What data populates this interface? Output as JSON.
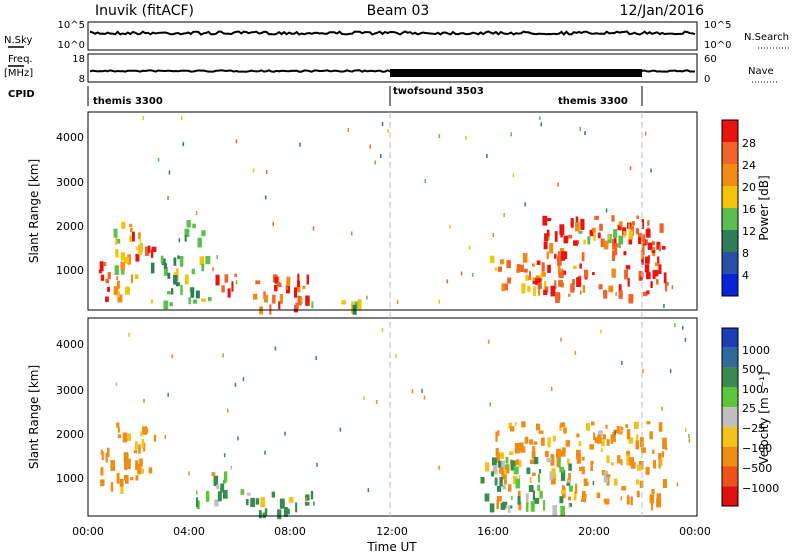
{
  "header": {
    "station": "Inuvik (fitACF)",
    "beam": "Beam 03",
    "date": "12/Jan/2016"
  },
  "strip": {
    "nsky_label": "N.Sky",
    "nsky_ticks": [
      "10^5",
      "10^0"
    ],
    "nsearch_label": "N.Search",
    "nsearch_ticks": [
      "10^5",
      "10^0"
    ],
    "freq_label": "Freq.",
    "freq_unit": "[MHz]",
    "freq_ticks": [
      "18",
      "8"
    ],
    "nave_label": "Nave",
    "nave_ticks": [
      "60",
      "0"
    ],
    "cpid_label": "CPID",
    "modes": [
      {
        "name": "themis 3300",
        "start": 0,
        "end": 12
      },
      {
        "name": "twofsound 3503",
        "start": 12,
        "end": 22
      },
      {
        "name": "themis 3300",
        "start": 22,
        "end": 24
      }
    ]
  },
  "xaxis": {
    "label": "Time UT",
    "ticks": [
      "00:00",
      "04:00",
      "08:00",
      "12:00",
      "16:00",
      "20:00",
      "00:00"
    ],
    "range_hours": [
      0,
      24
    ]
  },
  "power_panel": {
    "ylabel": "Slant Range [km]",
    "yticks": [
      "1000",
      "2000",
      "3000",
      "4000"
    ],
    "colorbar_label": "Power [dB]",
    "colorbar_ticks": [
      "4",
      "8",
      "12",
      "16",
      "20",
      "24",
      "28"
    ],
    "colors": [
      "#0a22d8",
      "#2a4fa8",
      "#2e7d5a",
      "#5bbf4f",
      "#f2c40a",
      "#f08c14",
      "#f0642a",
      "#e8140f"
    ]
  },
  "velocity_panel": {
    "ylabel": "Slant Range [km]",
    "yticks": [
      "1000",
      "2000",
      "3000",
      "4000"
    ],
    "colorbar_label": "Velocity [m s⁻¹]",
    "colorbar_ticks": [
      "1000",
      "500",
      "100",
      "25",
      "−25",
      "−100",
      "−500",
      "−1000"
    ],
    "colors": [
      "#1c3fb8",
      "#2f6b9a",
      "#3a8a50",
      "#5cc63a",
      "#bfbfbf",
      "#f4c21a",
      "#f08c14",
      "#f0501a",
      "#e01010"
    ]
  },
  "chart_data": {
    "type": "heatmap",
    "x_unit": "hours UT",
    "y_unit": "km",
    "x_range": [
      0,
      24
    ],
    "y_range": [
      180,
      4600
    ],
    "power_regions": [
      {
        "x": [
          0.4,
          0.9
        ],
        "y": [
          400,
          1700
        ],
        "value_db": 28
      },
      {
        "x": [
          1.7,
          2.6
        ],
        "y": [
          1300,
          2000
        ],
        "value_db": 26
      },
      {
        "x": [
          1.0,
          2.0
        ],
        "y": [
          400,
          2200
        ],
        "value_db": 18
      },
      {
        "x": [
          2.4,
          4.8
        ],
        "y": [
          350,
          1400
        ],
        "value_db": 14
      },
      {
        "x": [
          3.8,
          4.6
        ],
        "y": [
          1600,
          2200
        ],
        "value_db": 12
      },
      {
        "x": [
          5.0,
          8.8
        ],
        "y": [
          250,
          1000
        ],
        "value_db": 27
      },
      {
        "x": [
          8.8,
          11.0
        ],
        "y": [
          250,
          500
        ],
        "value_db": 14
      },
      {
        "x": [
          15.8,
          19.2
        ],
        "y": [
          700,
          1500
        ],
        "value_db": 22
      },
      {
        "x": [
          17.5,
          22.8
        ],
        "y": [
          500,
          2300
        ],
        "value_db": 28
      },
      {
        "x": [
          19.0,
          21.5
        ],
        "y": [
          1700,
          2200
        ],
        "value_db": 18
      }
    ],
    "velocity_regions": [
      {
        "x": [
          0.4,
          0.9
        ],
        "y": [
          600,
          1900
        ],
        "value_ms": -300
      },
      {
        "x": [
          1.0,
          2.6
        ],
        "y": [
          800,
          2300
        ],
        "value_ms": -150
      },
      {
        "x": [
          4.0,
          5.4
        ],
        "y": [
          500,
          1200
        ],
        "value_ms": 0
      },
      {
        "x": [
          6.0,
          8.8
        ],
        "y": [
          250,
          800
        ],
        "value_ms": 100
      },
      {
        "x": [
          16.0,
          22.8
        ],
        "y": [
          500,
          2300
        ],
        "value_ms": -200
      },
      {
        "x": [
          15.4,
          19.0
        ],
        "y": [
          400,
          1500
        ],
        "value_ms": 100
      }
    ]
  }
}
